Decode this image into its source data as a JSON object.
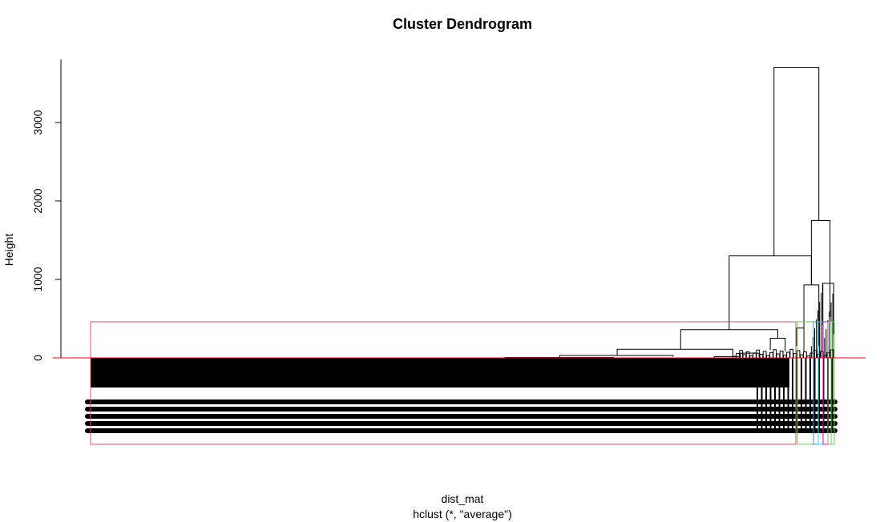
{
  "chart_data": {
    "type": "dendrogram",
    "title": "Cluster Dendrogram",
    "xlabel": "dist_mat",
    "sub": "hclust (*, \"average\")",
    "ylabel": "Height",
    "yticks": [
      0,
      1000,
      2000,
      3000
    ],
    "ylim": [
      0,
      3700
    ],
    "cut_height": 0,
    "merges": [
      {
        "x1": 0.915,
        "x2": 0.975,
        "h": 3700,
        "h1": 1300,
        "h2": 1750
      },
      {
        "x1": 0.855,
        "x2": 0.965,
        "h": 1300,
        "h1": 360,
        "h2": 930
      },
      {
        "x1": 0.79,
        "x2": 0.92,
        "h": 360,
        "h1": 110,
        "h2": 250
      },
      {
        "x1": 0.705,
        "x2": 0.86,
        "h": 110,
        "h1": 30,
        "h2": 15
      },
      {
        "x1": 0.628,
        "x2": 0.78,
        "h": 30,
        "h1": 5,
        "h2": 15
      },
      {
        "x1": 0.555,
        "x2": 0.7,
        "h": 5,
        "h1": 0,
        "h2": 0
      },
      {
        "x1": 0.955,
        "x2": 0.975,
        "h": 930,
        "h1": 380,
        "h2": 150
      },
      {
        "x1": 0.965,
        "x2": 0.99,
        "h": 1750,
        "h1": 950,
        "h2": 520
      },
      {
        "x1": 0.98,
        "x2": 0.995,
        "h": 950,
        "h1": 420,
        "h2": 300
      },
      {
        "x1": 0.945,
        "x2": 0.955,
        "h": 380,
        "h1": 150,
        "h2": 80
      },
      {
        "x1": 0.91,
        "x2": 0.93,
        "h": 250,
        "h1": 100,
        "h2": 80
      },
      {
        "x1": 0.835,
        "x2": 0.87,
        "h": 15,
        "h1": 5,
        "h2": 5
      },
      {
        "x1": 0.87,
        "x2": 0.895,
        "h": 60,
        "h1": 20,
        "h2": 10
      }
    ],
    "rect_color_main": "#DF536B",
    "rect_colors": [
      "#61D04F",
      "#2297E6",
      "#28E2E5",
      "#CD0BBC",
      "#9E9E9E"
    ],
    "cutline_color": "#FF0000",
    "leaf_color": "#000000"
  }
}
